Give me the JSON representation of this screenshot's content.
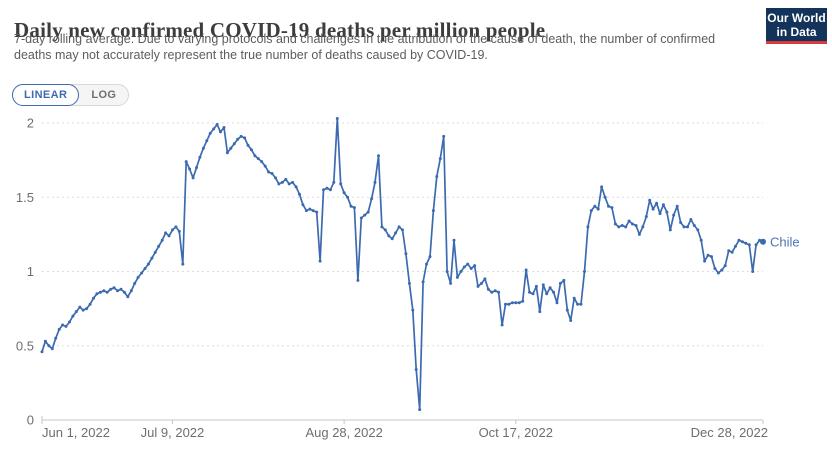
{
  "header": {
    "title": "Daily new confirmed COVID-19 deaths per million people",
    "subtitle_line1": "7-day rolling average. Due to varying protocols and challenges in the attribution of the cause of death, the number of confirmed",
    "subtitle_line2": "deaths may not accurately represent the true number of deaths caused by COVID-19.",
    "logo": {
      "line1": "Our World",
      "line2": "in Data",
      "bg_color": "#13335b",
      "bar_color": "#d73c3c"
    }
  },
  "toolbar": {
    "linear_label": "LINEAR",
    "log_label": "LOG"
  },
  "colors": {
    "line": "#3c6ab0",
    "series_label": "#4e74b4",
    "grid": "#dcdcdc",
    "axis": "#c4c4c4",
    "accent_blue": "#3d6bb0"
  },
  "chart_data": {
    "type": "line",
    "title": "Daily new confirmed COVID-19 deaths per million people",
    "x_start_label": "Jun 1, 2022",
    "x_end_label": "Dec 28, 2022",
    "x_tick_labels": [
      "Jun 1, 2022",
      "Jul 9, 2022",
      "Aug 28, 2022",
      "Oct 17, 2022",
      "Dec 28, 2022"
    ],
    "x_tick_days": [
      0,
      38,
      88,
      138,
      210
    ],
    "y_ticks": [
      0,
      0.5,
      1,
      1.5,
      2
    ],
    "ylim": [
      0,
      2.1
    ],
    "grid": true,
    "legend_position": "end-of-line",
    "end_label": "Chile",
    "series": [
      {
        "name": "Chile",
        "x_unit": "days since Jun 1, 2022",
        "values": [
          0.46,
          0.53,
          0.5,
          0.48,
          0.55,
          0.61,
          0.64,
          0.63,
          0.66,
          0.7,
          0.73,
          0.76,
          0.74,
          0.75,
          0.78,
          0.82,
          0.85,
          0.86,
          0.87,
          0.86,
          0.88,
          0.89,
          0.87,
          0.88,
          0.86,
          0.83,
          0.87,
          0.92,
          0.96,
          0.99,
          1.02,
          1.05,
          1.09,
          1.13,
          1.17,
          1.21,
          1.26,
          1.24,
          1.28,
          1.3,
          1.27,
          1.05,
          1.74,
          1.69,
          1.63,
          1.7,
          1.77,
          1.83,
          1.88,
          1.93,
          1.96,
          1.99,
          1.94,
          1.97,
          1.8,
          1.83,
          1.86,
          1.89,
          1.91,
          1.9,
          1.85,
          1.82,
          1.78,
          1.76,
          1.74,
          1.71,
          1.67,
          1.66,
          1.63,
          1.59,
          1.6,
          1.62,
          1.59,
          1.6,
          1.57,
          1.52,
          1.45,
          1.41,
          1.42,
          1.41,
          1.4,
          1.07,
          1.55,
          1.56,
          1.55,
          1.6,
          2.03,
          1.59,
          1.53,
          1.5,
          1.44,
          1.43,
          0.94,
          1.36,
          1.38,
          1.4,
          1.49,
          1.6,
          1.78,
          1.3,
          1.28,
          1.24,
          1.22,
          1.26,
          1.3,
          1.28,
          1.12,
          0.92,
          0.74,
          0.34,
          0.07,
          0.93,
          1.05,
          1.1,
          1.41,
          1.64,
          1.76,
          1.91,
          1.0,
          0.92,
          1.21,
          0.96,
          1.0,
          1.03,
          1.05,
          1.02,
          1.04,
          0.9,
          0.92,
          0.95,
          0.88,
          0.86,
          0.87,
          0.86,
          0.64,
          0.78,
          0.78,
          0.79,
          0.79,
          0.79,
          0.8,
          1.01,
          0.86,
          0.85,
          0.9,
          0.73,
          0.91,
          0.85,
          0.89,
          0.86,
          0.79,
          0.92,
          0.94,
          0.74,
          0.67,
          0.82,
          0.78,
          0.78,
          1.0,
          1.3,
          1.41,
          1.44,
          1.42,
          1.57,
          1.5,
          1.44,
          1.43,
          1.32,
          1.3,
          1.31,
          1.3,
          1.34,
          1.32,
          1.31,
          1.25,
          1.3,
          1.37,
          1.48,
          1.42,
          1.46,
          1.39,
          1.45,
          1.4,
          1.28,
          1.38,
          1.44,
          1.33,
          1.3,
          1.3,
          1.35,
          1.31,
          1.28,
          1.21,
          1.07,
          1.11,
          1.1,
          1.02,
          0.99,
          1.01,
          1.04,
          1.14,
          1.13,
          1.17,
          1.21,
          1.2,
          1.19,
          1.18,
          1.0,
          1.18,
          1.21,
          1.2
        ]
      }
    ]
  }
}
